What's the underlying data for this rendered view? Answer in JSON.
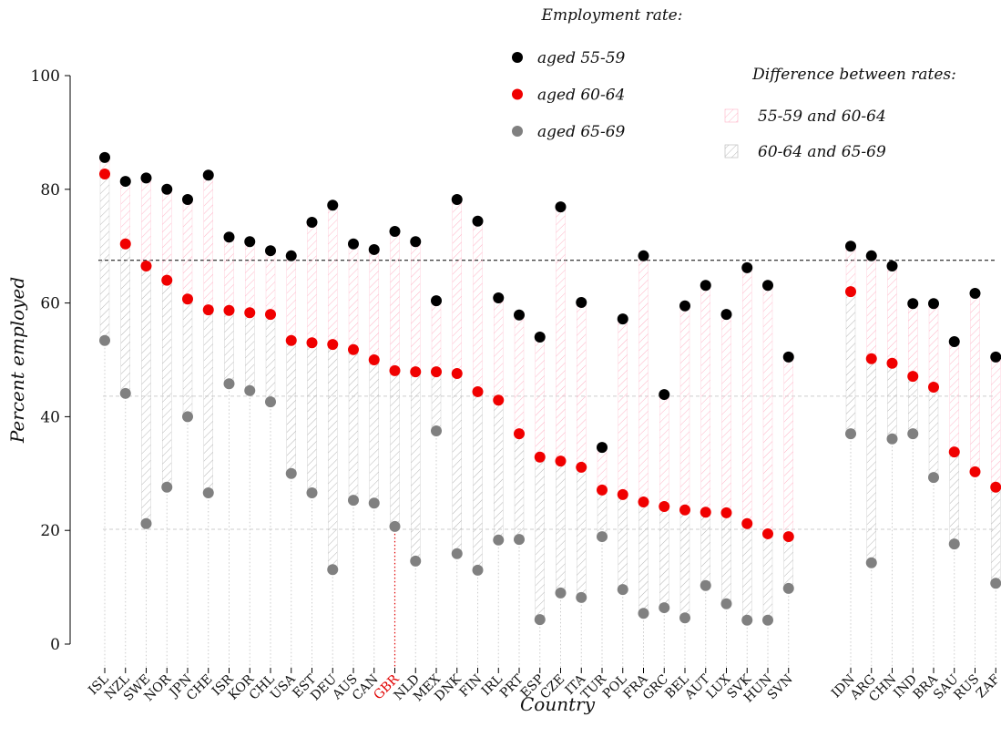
{
  "chart_data": {
    "type": "dumbbell",
    "legend_title": "Employment rate:",
    "diff_title": "Difference between rates:",
    "diff_labels": [
      "55-59 and 60-64",
      "60-64 and 65-69"
    ],
    "diff_colors": [
      "#ffb3c6",
      "#b5b5b5"
    ],
    "xlabel": "Country",
    "ylabel": "Percent employed",
    "highlight": "GBR",
    "highlight_color": "#e00000",
    "categories": [
      "ISL",
      "NZL",
      "SWE",
      "NOR",
      "JPN",
      "CHE",
      "ISR",
      "KOR",
      "CHL",
      "USA",
      "EST",
      "DEU",
      "AUS",
      "CAN",
      "GBR",
      "NLD",
      "MEX",
      "DNK",
      "FIN",
      "IRL",
      "PRT",
      "ESP",
      "CZE",
      "ITA",
      "TUR",
      "POL",
      "FRA",
      "GRC",
      "BEL",
      "AUT",
      "LUX",
      "SVK",
      "HUN",
      "SVN",
      null,
      null,
      "IDN",
      "ARG",
      "CHN",
      "IND",
      "BRA",
      "SAU",
      "RUS",
      "ZAF"
    ],
    "series": [
      {
        "name": "aged 55-59",
        "color": "#000000",
        "values": [
          85.6,
          81.4,
          82,
          80,
          78.2,
          82.5,
          71.6,
          70.8,
          69.2,
          68.3,
          74.2,
          77.2,
          70.4,
          69.4,
          72.6,
          70.8,
          60.4,
          78.2,
          74.4,
          60.9,
          57.9,
          54,
          76.9,
          60.1,
          34.6,
          57.2,
          68.3,
          43.9,
          59.5,
          63.1,
          58,
          66.2,
          63.1,
          50.5,
          null,
          null,
          70,
          68.3,
          66.5,
          59.9,
          59.9,
          53.2,
          61.7,
          50.5
        ]
      },
      {
        "name": "aged 60-64",
        "color": "#f00000",
        "values": [
          82.7,
          70.4,
          66.5,
          64,
          60.7,
          58.8,
          58.7,
          58.3,
          58,
          53.4,
          53,
          52.7,
          51.8,
          50,
          48.1,
          47.9,
          47.9,
          47.6,
          44.4,
          42.9,
          37,
          32.9,
          32.2,
          31.1,
          27.1,
          26.3,
          25,
          24.2,
          23.6,
          23.2,
          23.1,
          21.2,
          19.4,
          18.9,
          null,
          null,
          62,
          50.2,
          49.4,
          47.1,
          45.2,
          33.8,
          30.3,
          27.6
        ]
      },
      {
        "name": "aged 65-69",
        "color": "#808080",
        "values": [
          53.4,
          44.1,
          21.2,
          27.6,
          40,
          26.6,
          45.8,
          44.6,
          42.6,
          30,
          26.6,
          13.1,
          25.3,
          24.8,
          20.7,
          14.6,
          37.5,
          15.9,
          13,
          18.3,
          18.4,
          4.3,
          9,
          8.2,
          18.9,
          9.6,
          5.4,
          6.4,
          4.6,
          10.3,
          7.1,
          4.2,
          4.2,
          9.8,
          null,
          null,
          37,
          14.3,
          36.1,
          37,
          29.3,
          17.6,
          null,
          10.7
        ]
      }
    ],
    "reference_lines": [
      {
        "value": 67.5,
        "color": "#000000"
      },
      {
        "value": 43.6,
        "color": "#cccccc"
      },
      {
        "value": 20.2,
        "color": "#cccccc"
      }
    ],
    "ylim": [
      0,
      100
    ],
    "yticks": [
      0,
      20,
      40,
      60,
      80,
      100
    ]
  }
}
